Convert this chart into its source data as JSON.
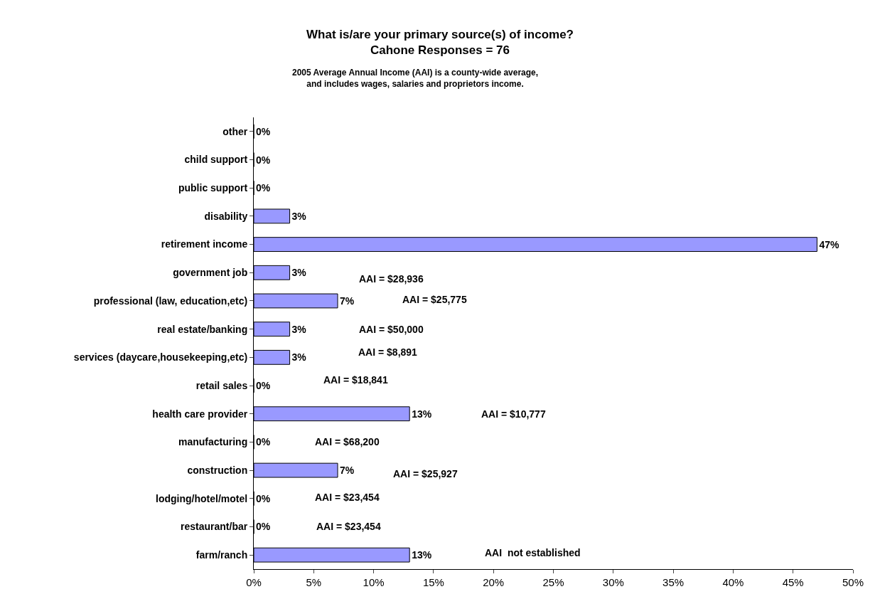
{
  "chart_data": {
    "type": "bar",
    "orientation": "horizontal",
    "title": "What is/are your primary source(s) of income?",
    "subtitle": "Cahone Responses = 76",
    "categories": [
      "other",
      "child support",
      "public support",
      "disability",
      "retirement income",
      "government job",
      "professional (law, education,etc)",
      "real estate/banking",
      "services (daycare,housekeeping,etc)",
      "retail sales",
      "health care provider",
      "manufacturing",
      "construction",
      "lodging/hotel/motel",
      "restaurant/bar",
      "farm/ranch"
    ],
    "values": [
      0,
      0,
      0,
      3,
      47,
      3,
      7,
      3,
      3,
      0,
      13,
      0,
      7,
      0,
      0,
      13
    ],
    "value_labels": [
      "0%",
      "0%",
      "0%",
      "3%",
      "47%",
      "3%",
      "7%",
      "3%",
      "3%",
      "0%",
      "13%",
      "0%",
      "7%",
      "0%",
      "0%",
      "13%"
    ],
    "color": "#9999ff",
    "xlim": [
      0,
      50
    ],
    "xticks": [
      {
        "value": 0,
        "label": "0%"
      },
      {
        "value": 5,
        "label": "5%"
      },
      {
        "value": 10,
        "label": "10%"
      },
      {
        "value": 15,
        "label": "15%"
      },
      {
        "value": 20,
        "label": "20%"
      },
      {
        "value": 25,
        "label": "25%"
      },
      {
        "value": 30,
        "label": "30%"
      },
      {
        "value": 35,
        "label": "35%"
      },
      {
        "value": 40,
        "label": "40%"
      },
      {
        "value": 45,
        "label": "45%"
      },
      {
        "value": 50,
        "label": "50%"
      }
    ],
    "grid": false,
    "legend": false,
    "annotations": [
      "2005 Average Annual Income (AAI) is a county-wide average,",
      "and includes wages, salaries and proprietors income.",
      "AAI = $28,936",
      "AAI = $25,775",
      "AAI = $50,000",
      "AAI = $8,891",
      "AAI = $18,841",
      "AAI = $10,777",
      "AAI = $68,200",
      "AAI = $25,927",
      "AAI = $23,454",
      "AAI = $23,454",
      "AAI  not established"
    ]
  }
}
